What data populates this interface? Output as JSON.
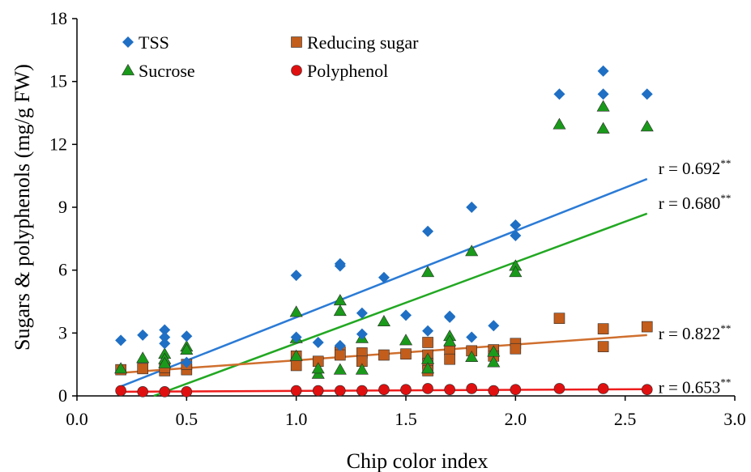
{
  "chart_data": {
    "type": "scatter",
    "xlabel": "Chip color index",
    "ylabel": "Sugars & polyphenols (mg/g FW)",
    "xlim": [
      0.0,
      3.0
    ],
    "ylim": [
      0,
      18
    ],
    "x_ticks": [
      "0.0",
      "0.5",
      "1.0",
      "1.5",
      "2.0",
      "2.5",
      "3.0"
    ],
    "y_ticks": [
      "0",
      "3",
      "6",
      "9",
      "12",
      "15",
      "18"
    ],
    "grid": false,
    "legend_position": "top-left",
    "series": [
      {
        "name": "TSS",
        "marker": "diamond",
        "color": "#1f6fc4",
        "points": [
          [
            0.2,
            2.65
          ],
          [
            0.3,
            2.9
          ],
          [
            0.4,
            3.15
          ],
          [
            0.4,
            2.8
          ],
          [
            0.4,
            2.5
          ],
          [
            0.5,
            2.85
          ],
          [
            0.5,
            1.6
          ],
          [
            1.0,
            5.75
          ],
          [
            1.0,
            2.8
          ],
          [
            1.1,
            2.55
          ],
          [
            1.2,
            6.3
          ],
          [
            1.2,
            6.2
          ],
          [
            1.2,
            2.4
          ],
          [
            1.3,
            3.95
          ],
          [
            1.3,
            2.95
          ],
          [
            1.4,
            5.65
          ],
          [
            1.5,
            3.85
          ],
          [
            1.6,
            7.85
          ],
          [
            1.6,
            3.1
          ],
          [
            1.7,
            3.8
          ],
          [
            1.7,
            3.75
          ],
          [
            1.8,
            9.0
          ],
          [
            1.8,
            2.8
          ],
          [
            1.9,
            3.35
          ],
          [
            2.0,
            8.15
          ],
          [
            2.0,
            7.65
          ],
          [
            2.2,
            14.4
          ],
          [
            2.4,
            15.5
          ],
          [
            2.4,
            14.4
          ],
          [
            2.6,
            14.4
          ]
        ],
        "trend": {
          "x": [
            0.2,
            2.6
          ],
          "y": [
            0.45,
            10.35
          ],
          "color": "#2b7bd6"
        },
        "r_label": "r = 0.692",
        "r_sup": "**"
      },
      {
        "name": "Sucrose",
        "marker": "triangle",
        "color": "#1a9a1a",
        "points": [
          [
            0.2,
            1.3
          ],
          [
            0.3,
            1.8
          ],
          [
            0.4,
            2.0
          ],
          [
            0.4,
            1.75
          ],
          [
            0.4,
            1.55
          ],
          [
            0.5,
            2.35
          ],
          [
            0.5,
            2.2
          ],
          [
            1.0,
            4.0
          ],
          [
            1.0,
            2.75
          ],
          [
            1.0,
            1.9
          ],
          [
            1.1,
            1.05
          ],
          [
            1.1,
            1.3
          ],
          [
            1.2,
            4.55
          ],
          [
            1.2,
            4.05
          ],
          [
            1.2,
            1.25
          ],
          [
            1.3,
            2.75
          ],
          [
            1.3,
            1.25
          ],
          [
            1.4,
            3.55
          ],
          [
            1.5,
            2.65
          ],
          [
            1.6,
            5.9
          ],
          [
            1.6,
            1.75
          ],
          [
            1.6,
            1.3
          ],
          [
            1.7,
            2.85
          ],
          [
            1.7,
            2.6
          ],
          [
            1.8,
            6.9
          ],
          [
            1.8,
            1.85
          ],
          [
            1.9,
            2.1
          ],
          [
            1.9,
            1.6
          ],
          [
            2.0,
            6.2
          ],
          [
            2.0,
            5.9
          ],
          [
            2.2,
            12.95
          ],
          [
            2.4,
            13.8
          ],
          [
            2.4,
            12.75
          ],
          [
            2.6,
            12.85
          ]
        ],
        "trend": {
          "x": [
            0.35,
            2.6
          ],
          "y": [
            0.0,
            8.7
          ],
          "color": "#22a822"
        },
        "r_label": "r = 0.680",
        "r_sup": "**"
      },
      {
        "name": "Reducing sugar",
        "marker": "square",
        "color": "#c25d1c",
        "points": [
          [
            0.2,
            1.25
          ],
          [
            0.3,
            1.3
          ],
          [
            0.4,
            1.2
          ],
          [
            0.4,
            1.35
          ],
          [
            0.5,
            1.25
          ],
          [
            0.5,
            1.5
          ],
          [
            1.0,
            1.9
          ],
          [
            1.0,
            1.45
          ],
          [
            1.1,
            1.65
          ],
          [
            1.2,
            2.1
          ],
          [
            1.2,
            1.95
          ],
          [
            1.3,
            2.05
          ],
          [
            1.3,
            1.65
          ],
          [
            1.4,
            1.95
          ],
          [
            1.5,
            2.0
          ],
          [
            1.6,
            2.55
          ],
          [
            1.6,
            1.95
          ],
          [
            1.6,
            1.55
          ],
          [
            1.6,
            1.2
          ],
          [
            1.7,
            2.2
          ],
          [
            1.7,
            1.75
          ],
          [
            1.8,
            2.15
          ],
          [
            1.9,
            2.2
          ],
          [
            1.9,
            1.9
          ],
          [
            2.0,
            2.5
          ],
          [
            2.0,
            2.25
          ],
          [
            2.2,
            3.7
          ],
          [
            2.4,
            3.2
          ],
          [
            2.4,
            2.35
          ],
          [
            2.6,
            3.3
          ]
        ],
        "trend": {
          "x": [
            0.2,
            2.6
          ],
          "y": [
            1.1,
            2.9
          ],
          "color": "#cf6f2e"
        },
        "r_label": "r = 0.822",
        "r_sup": "**"
      },
      {
        "name": "Polyphenol",
        "marker": "circle",
        "color": "#e01010",
        "points": [
          [
            0.2,
            0.25
          ],
          [
            0.3,
            0.2
          ],
          [
            0.4,
            0.2
          ],
          [
            0.5,
            0.2
          ],
          [
            1.0,
            0.25
          ],
          [
            1.1,
            0.25
          ],
          [
            1.2,
            0.25
          ],
          [
            1.3,
            0.25
          ],
          [
            1.4,
            0.3
          ],
          [
            1.5,
            0.3
          ],
          [
            1.6,
            0.35
          ],
          [
            1.7,
            0.3
          ],
          [
            1.8,
            0.35
          ],
          [
            1.9,
            0.25
          ],
          [
            2.0,
            0.3
          ],
          [
            2.2,
            0.35
          ],
          [
            2.4,
            0.35
          ],
          [
            2.6,
            0.3
          ]
        ],
        "trend": {
          "x": [
            0.2,
            2.6
          ],
          "y": [
            0.2,
            0.32
          ],
          "color": "#ee1c1c"
        },
        "r_label": "r = 0.653",
        "r_sup": "**"
      }
    ]
  }
}
